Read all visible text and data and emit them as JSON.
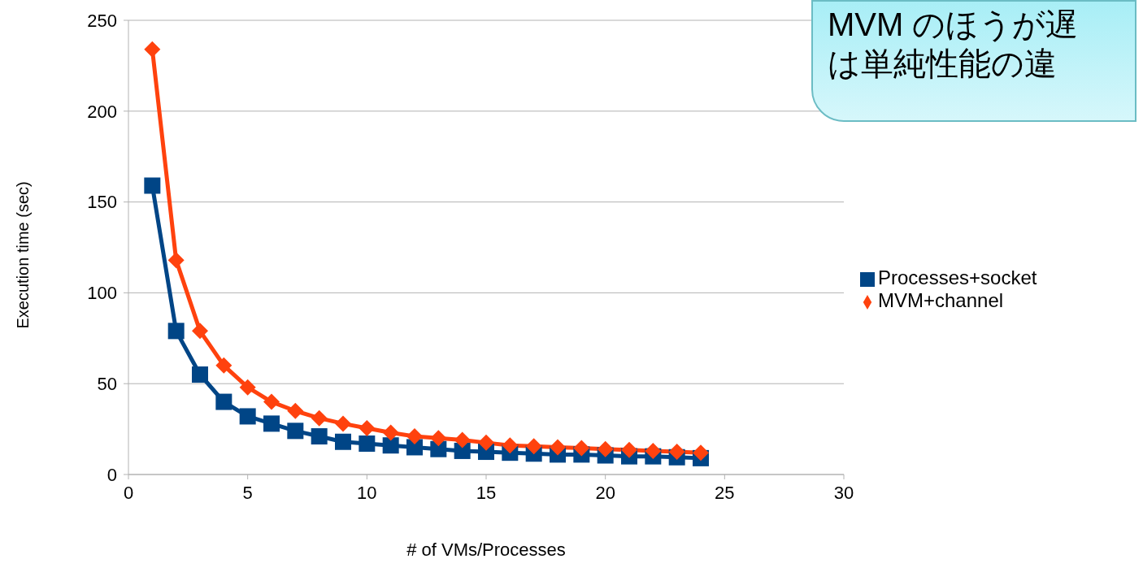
{
  "chart_data": {
    "type": "line",
    "xlabel": "# of VMs/Processes",
    "ylabel": "Execution time (sec)",
    "x": [
      1,
      2,
      3,
      4,
      5,
      6,
      7,
      8,
      9,
      10,
      11,
      12,
      13,
      14,
      15,
      16,
      17,
      18,
      19,
      20,
      21,
      22,
      23,
      24
    ],
    "series": [
      {
        "name": "Processes+socket",
        "color": "#004586",
        "marker": "square",
        "values": [
          159,
          79,
          55,
          40,
          32,
          28,
          24,
          21,
          18,
          17,
          16,
          15,
          14,
          13,
          12.5,
          12,
          11.5,
          11,
          11,
          10.5,
          10,
          10,
          9.5,
          9
        ]
      },
      {
        "name": "MVM+channel",
        "color": "#ff420e",
        "marker": "diamond",
        "values": [
          234,
          118,
          79,
          60,
          48,
          40,
          35,
          31,
          28,
          25.5,
          23,
          21,
          20,
          19,
          17.5,
          16,
          15.5,
          15,
          14.5,
          14,
          13.5,
          13,
          12.5,
          12
        ]
      }
    ],
    "xlim": [
      0,
      30
    ],
    "xticks": [
      0,
      5,
      10,
      15,
      20,
      25,
      30
    ],
    "ylim": [
      0,
      250
    ],
    "yticks": [
      0,
      50,
      100,
      150,
      200,
      250
    ],
    "grid": "y",
    "legend": "right",
    "annotations": [
      "MVM のほうが遅",
      "は単純性能の違"
    ]
  }
}
